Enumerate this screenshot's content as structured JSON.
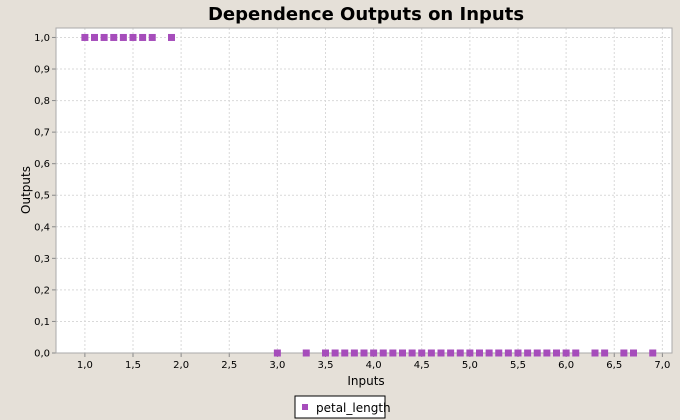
{
  "chart_data": {
    "type": "scatter",
    "title": "Dependence Outputs on Inputs",
    "xlabel": "Inputs",
    "ylabel": "Outputs",
    "xlim": [
      0.7,
      7.1
    ],
    "ylim": [
      0,
      1.03
    ],
    "x_ticks": [
      "1,0",
      "1,5",
      "2,0",
      "2,5",
      "3,0",
      "3,5",
      "4,0",
      "4,5",
      "5,0",
      "5,5",
      "6,0",
      "6,5",
      "7,0"
    ],
    "y_ticks": [
      "0,0",
      "0,1",
      "0,2",
      "0,3",
      "0,4",
      "0,5",
      "0,6",
      "0,7",
      "0,8",
      "0,9",
      "1,0"
    ],
    "grid": true,
    "legend_position": "bottom-center",
    "series": [
      {
        "name": "petal_length",
        "color": "#a64dbb",
        "marker": "square",
        "x": [
          1.0,
          1.1,
          1.2,
          1.3,
          1.4,
          1.5,
          1.6,
          1.7,
          1.9,
          3.0,
          3.3,
          3.5,
          3.6,
          3.7,
          3.8,
          3.9,
          4.0,
          4.1,
          4.2,
          4.3,
          4.4,
          4.5,
          4.6,
          4.7,
          4.8,
          4.9,
          5.0,
          5.1,
          5.2,
          5.3,
          5.4,
          5.5,
          5.6,
          5.7,
          5.8,
          5.9,
          6.0,
          6.1,
          6.3,
          6.4,
          6.6,
          6.7,
          6.9
        ],
        "y": [
          1,
          1,
          1,
          1,
          1,
          1,
          1,
          1,
          1,
          0,
          0,
          0,
          0,
          0,
          0,
          0,
          0,
          0,
          0,
          0,
          0,
          0,
          0,
          0,
          0,
          0,
          0,
          0,
          0,
          0,
          0,
          0,
          0,
          0,
          0,
          0,
          0,
          0,
          0,
          0,
          0,
          0,
          0
        ]
      }
    ]
  }
}
